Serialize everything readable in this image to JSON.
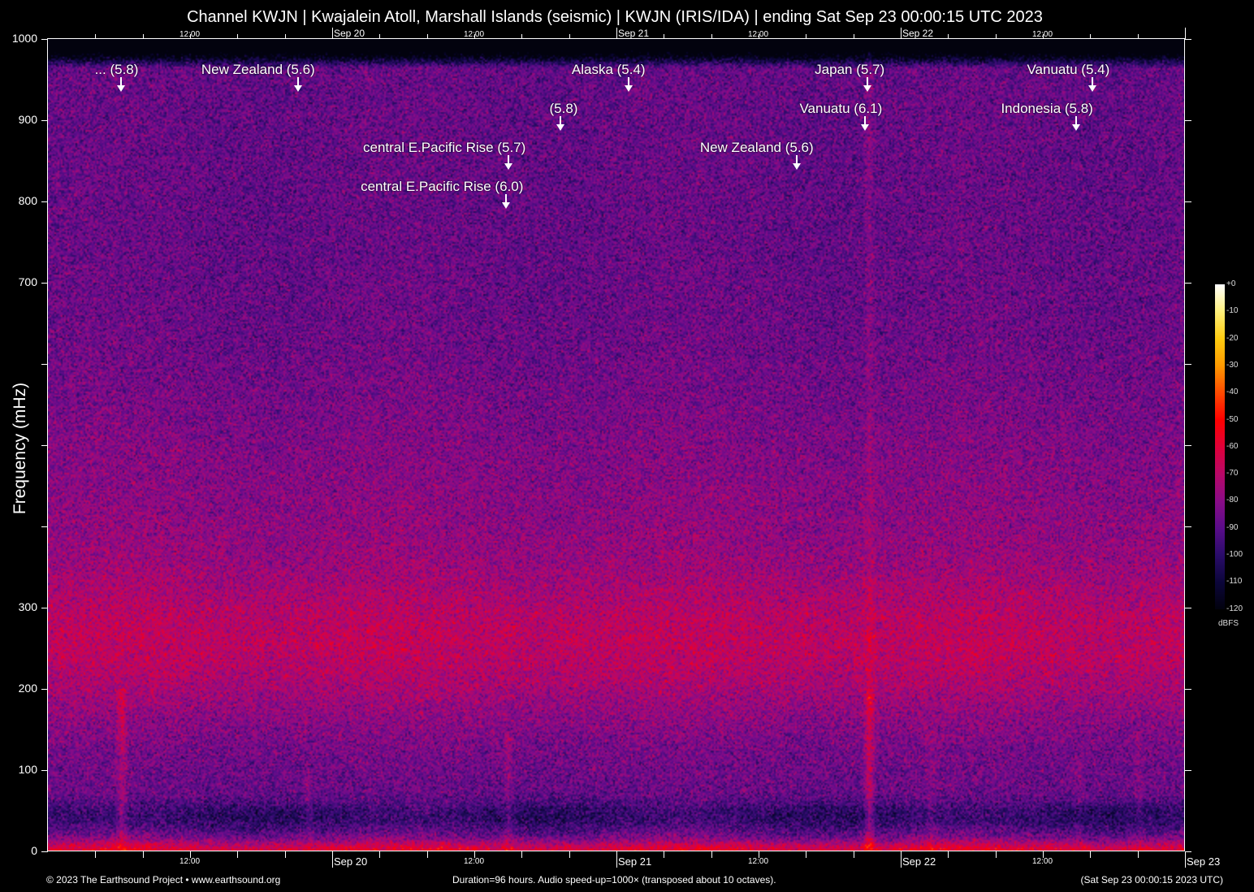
{
  "chart_data": {
    "type": "heatmap",
    "subtype": "spectrogram",
    "title": "Channel KWJN | Kwajalein Atoll, Marshall Islands (seismic) | KWJN (IRIS/IDA) | ending Sat Sep 23 00:00:15 UTC 2023",
    "ylabel": "Frequency (mHz)",
    "ylim": [
      0,
      1000
    ],
    "y_ticks": [
      0,
      100,
      200,
      300,
      400,
      500,
      600,
      700,
      800,
      900,
      1000
    ],
    "y_tick_labels": [
      "0",
      "100",
      "200",
      "300",
      "",
      "",
      "",
      "700",
      "800",
      "900",
      "1000"
    ],
    "x_range_hours": [
      0,
      96
    ],
    "x_start": "Sep 19 00:00 UTC",
    "x_end": "Sep 23 00:00 UTC",
    "x_major_ticks": [
      {
        "hour": 24,
        "label": "Sep 20"
      },
      {
        "hour": 48,
        "label": "Sep 21"
      },
      {
        "hour": 72,
        "label": "Sep 22"
      },
      {
        "hour": 96,
        "label": "Sep 23"
      }
    ],
    "x_minor_labels": [
      {
        "hour": 12,
        "label": "12:00"
      },
      {
        "hour": 36,
        "label": "12:00"
      },
      {
        "hour": 60,
        "label": "12:00"
      },
      {
        "hour": 84,
        "label": "12:00"
      }
    ],
    "x_minor_tick_interval_hours": 4,
    "colorbar": {
      "unit": "dBFS",
      "range": [
        -120,
        0
      ],
      "tick_labels": [
        "+0",
        "-10",
        "-20",
        "-30",
        "-40",
        "-50",
        "-60",
        "-70",
        "-80",
        "-90",
        "-100",
        "-110",
        "-120"
      ],
      "colors": [
        "#ffffff",
        "#fff07a",
        "#ffcc10",
        "#ff9a00",
        "#ff4a00",
        "#ff0000",
        "#e0003a",
        "#b80868",
        "#8a0c88",
        "#5a0c8a",
        "#2a0c6a",
        "#0c063a",
        "#02020e"
      ]
    },
    "events": [
      {
        "label": "... (5.8)",
        "hour": 6.2,
        "row": 1
      },
      {
        "label": "New Zealand (5.6)",
        "hour": 21.1,
        "row": 1
      },
      {
        "label": "Alaska (5.4)",
        "hour": 49.0,
        "row": 1
      },
      {
        "label": "Japan (5.7)",
        "hour": 69.2,
        "row": 1
      },
      {
        "label": "Vanuatu (5.4)",
        "hour": 88.2,
        "row": 1
      },
      {
        "label": "(5.8)",
        "hour": 43.3,
        "row": 2
      },
      {
        "label": "Vanuatu (6.1)",
        "hour": 69.0,
        "row": 2
      },
      {
        "label": "Indonesia (5.8)",
        "hour": 86.8,
        "row": 2
      },
      {
        "label": "central E.Pacific Rise (5.7)",
        "hour": 38.9,
        "row": 3
      },
      {
        "label": "New Zealand (5.6)",
        "hour": 63.2,
        "row": 3
      },
      {
        "label": "central E.Pacific Rise (6.0)",
        "hour": 38.7,
        "row": 4
      }
    ]
  },
  "footer": {
    "left": "© 2023 The Earthsound Project • www.earthsound.org",
    "center": "Duration=96 hours. Audio speed-up=1000× (transposed about 10 octaves).",
    "right": "(Sat Sep 23 00:00:15 2023 UTC)"
  }
}
